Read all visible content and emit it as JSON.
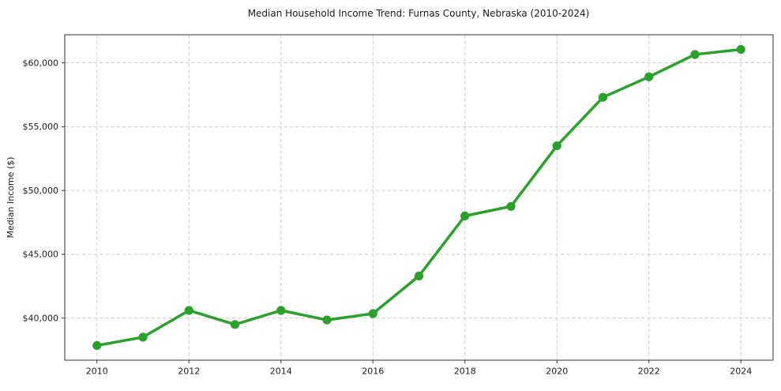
{
  "chart_data": {
    "type": "line",
    "title": "Median Household Income Trend: Furnas County, Nebraska (2010-2024)",
    "xlabel": "",
    "ylabel": "Median Income ($)",
    "x": [
      2010,
      2011,
      2012,
      2013,
      2014,
      2015,
      2016,
      2017,
      2018,
      2019,
      2020,
      2021,
      2022,
      2023,
      2024
    ],
    "values": [
      37850,
      38500,
      40600,
      39500,
      40600,
      39850,
      40350,
      43300,
      48000,
      48750,
      53500,
      57300,
      58900,
      60650,
      61050
    ],
    "xlim": [
      2009.3,
      2024.7
    ],
    "ylim": [
      36700,
      62200
    ],
    "xticks": [
      {
        "value": 2010,
        "label": "2010"
      },
      {
        "value": 2012,
        "label": "2012"
      },
      {
        "value": 2014,
        "label": "2014"
      },
      {
        "value": 2016,
        "label": "2016"
      },
      {
        "value": 2018,
        "label": "2018"
      },
      {
        "value": 2020,
        "label": "2020"
      },
      {
        "value": 2022,
        "label": "2022"
      },
      {
        "value": 2024,
        "label": "2024"
      }
    ],
    "yticks": [
      {
        "value": 40000,
        "label": "$40,000"
      },
      {
        "value": 45000,
        "label": "$45,000"
      },
      {
        "value": 50000,
        "label": "$50,000"
      },
      {
        "value": 55000,
        "label": "$55,000"
      },
      {
        "value": 60000,
        "label": "$60,000"
      }
    ],
    "grid": true,
    "grid_style": "dashed",
    "legend": "none",
    "marker": "circle",
    "colors": {
      "line": "#2ca02c",
      "marker": "#2ca02c",
      "grid": "#cdcdcd",
      "spine": "#333333",
      "text": "#1c1c1c",
      "background": "#ffffff"
    }
  }
}
